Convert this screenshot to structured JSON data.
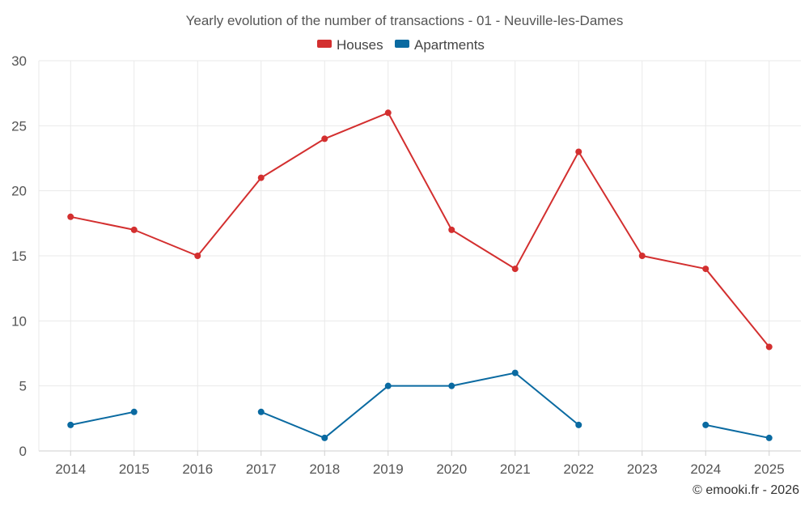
{
  "chart_data": {
    "type": "line",
    "title": "Yearly evolution of the number of transactions - 01 - Neuville-les-Dames",
    "xlabel": "",
    "ylabel": "",
    "categories": [
      "2014",
      "2015",
      "2016",
      "2017",
      "2018",
      "2019",
      "2020",
      "2021",
      "2022",
      "2023",
      "2024",
      "2025"
    ],
    "ylim": [
      0,
      30
    ],
    "yticks": [
      "0",
      "5",
      "10",
      "15",
      "20",
      "25",
      "30"
    ],
    "grid": true,
    "legend_position": "top-center",
    "series": [
      {
        "name": "Houses",
        "color": "#d32f2f",
        "values": [
          18,
          17,
          15,
          21,
          24,
          26,
          17,
          14,
          23,
          15,
          14,
          8
        ]
      },
      {
        "name": "Apartments",
        "color": "#0a6aa1",
        "values": [
          2,
          3,
          null,
          3,
          1,
          5,
          5,
          6,
          2,
          null,
          2,
          1
        ]
      }
    ]
  },
  "credit": "© emooki.fr - 2026"
}
